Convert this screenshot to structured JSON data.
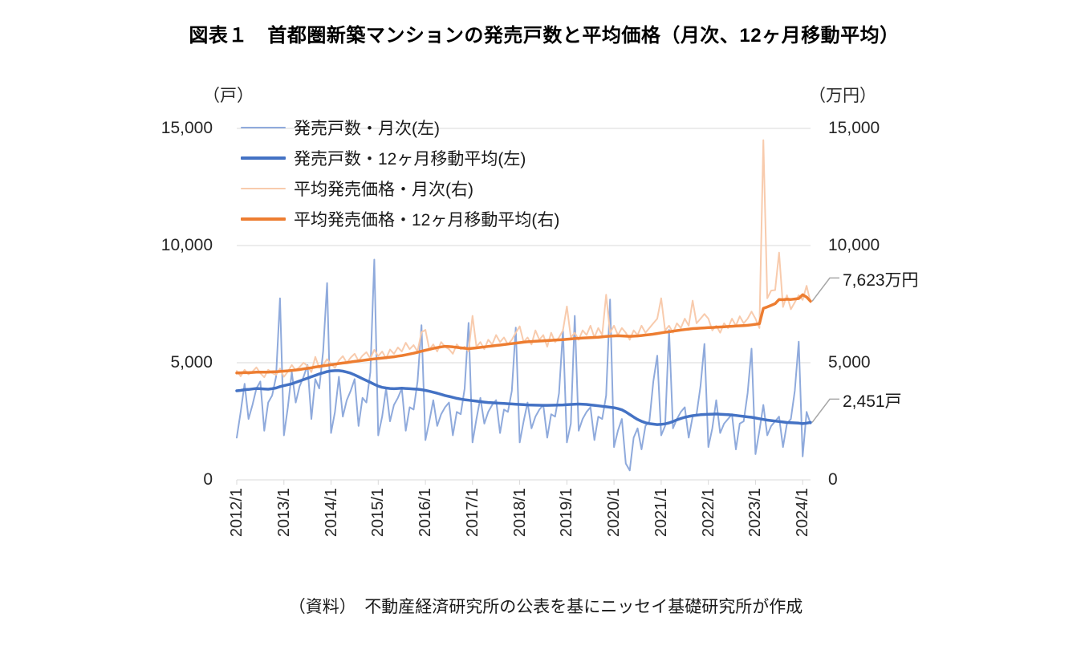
{
  "title": "図表１　首都圏新築マンションの発売戸数と平均価格（月次、12ヶ月移動平均）",
  "source": "（資料）　不動産経済研究所の公表を基にニッセイ基礎研究所が作成",
  "axes": {
    "left_unit": "（戸）",
    "right_unit": "（万円）",
    "tick_values": [
      15000,
      10000,
      5000,
      0
    ],
    "left_ticks": [
      "15,000",
      "10,000",
      "5,000",
      "0"
    ],
    "right_ticks": [
      "15,000",
      "10,000",
      "5,000",
      "0"
    ],
    "x_ticks": [
      "2012/1",
      "2013/1",
      "2014/1",
      "2015/1",
      "2016/1",
      "2017/1",
      "2018/1",
      "2019/1",
      "2020/1",
      "2021/1",
      "2022/1",
      "2023/1",
      "2024/1"
    ]
  },
  "colors": {
    "gridline": "#d9d9d9",
    "leader": "#a6a6a6",
    "units_monthly": "#8FAADC",
    "units_ma": "#4472C4",
    "price_monthly": "#F8CBAD",
    "price_ma": "#ED7D31"
  },
  "annotations": [
    {
      "text": "7,623万円",
      "value": 7623,
      "axis": "right",
      "series": "平均発売価格・12ヶ月移動平均(右)"
    },
    {
      "text": "2,451戸",
      "value": 2451,
      "axis": "left",
      "series": "発売戸数・12ヶ月移動平均(左)"
    }
  ],
  "chart_data": {
    "type": "line",
    "title": "図表１　首都圏新築マンションの発売戸数と平均価格（月次、12ヶ月移動平均）",
    "xlabel": "",
    "ylabel_left": "戸",
    "ylabel_right": "万円",
    "ylim_left": [
      0,
      15000
    ],
    "ylim_right": [
      0,
      15000
    ],
    "grid_values": [
      0,
      5000,
      10000,
      15000
    ],
    "x_start": "2012/1",
    "x_end": "2024/3",
    "frequency": "monthly",
    "legend_position": "top-left-inside",
    "series": [
      {
        "name": "発売戸数・月次(左)",
        "axis": "left",
        "color": "#8FAADC",
        "width": 2,
        "values": [
          1800,
          2900,
          4100,
          2600,
          3200,
          3900,
          4200,
          2100,
          3300,
          3600,
          4400,
          7750,
          1900,
          3100,
          4600,
          3300,
          4000,
          4400,
          4900,
          2600,
          4300,
          3900,
          5500,
          8400,
          2000,
          2900,
          4400,
          2700,
          3400,
          3800,
          4300,
          2300,
          3500,
          3300,
          4600,
          9400,
          1900,
          2700,
          3900,
          2500,
          3200,
          3500,
          3900,
          2100,
          3100,
          3000,
          4200,
          6600,
          1700,
          2500,
          3400,
          2300,
          2800,
          3100,
          3300,
          1900,
          2900,
          2800,
          3900,
          6700,
          1600,
          2600,
          3500,
          2400,
          2900,
          3200,
          3400,
          2000,
          3000,
          2900,
          3800,
          6500,
          1600,
          2500,
          3300,
          2200,
          2700,
          3000,
          3200,
          1800,
          2800,
          2700,
          3700,
          6400,
          1600,
          2400,
          7000,
          2100,
          2600,
          2900,
          3100,
          1700,
          2700,
          2600,
          3600,
          7700,
          1400,
          2100,
          2600,
          700,
          400,
          1800,
          2200,
          1300,
          2300,
          2500,
          4200,
          5300,
          1900,
          2300,
          6400,
          2200,
          2600,
          2900,
          3100,
          1800,
          2700,
          2800,
          4000,
          5800,
          1400,
          2200,
          3400,
          2000,
          2400,
          2600,
          2800,
          1300,
          2400,
          2500,
          3700,
          5600,
          1100,
          2100,
          3200,
          1900,
          2300,
          2500,
          2700,
          1400,
          2400,
          2600,
          3800,
          5900,
          1000,
          2900,
          2400
        ]
      },
      {
        "name": "発売戸数・12ヶ月移動平均(左)",
        "axis": "left",
        "color": "#4472C4",
        "width": 3.5,
        "values": [
          3800,
          3820,
          3850,
          3860,
          3880,
          3900,
          3890,
          3880,
          3870,
          3890,
          3920,
          3980,
          4020,
          4060,
          4100,
          4160,
          4220,
          4280,
          4340,
          4400,
          4460,
          4520,
          4570,
          4620,
          4650,
          4660,
          4660,
          4640,
          4600,
          4550,
          4480,
          4400,
          4320,
          4240,
          4160,
          4080,
          4000,
          3950,
          3920,
          3900,
          3890,
          3900,
          3910,
          3900,
          3890,
          3880,
          3870,
          3850,
          3820,
          3780,
          3740,
          3700,
          3650,
          3600,
          3560,
          3520,
          3480,
          3450,
          3420,
          3400,
          3380,
          3360,
          3340,
          3320,
          3300,
          3290,
          3280,
          3270,
          3260,
          3250,
          3240,
          3230,
          3220,
          3210,
          3200,
          3195,
          3190,
          3185,
          3180,
          3180,
          3185,
          3190,
          3195,
          3200,
          3210,
          3220,
          3230,
          3235,
          3230,
          3220,
          3200,
          3180,
          3160,
          3140,
          3120,
          3100,
          3080,
          3040,
          2990,
          2900,
          2790,
          2680,
          2580,
          2500,
          2440,
          2400,
          2380,
          2360,
          2370,
          2390,
          2430,
          2490,
          2560,
          2620,
          2670,
          2710,
          2740,
          2760,
          2780,
          2790,
          2800,
          2805,
          2810,
          2800,
          2790,
          2780,
          2770,
          2750,
          2730,
          2710,
          2690,
          2670,
          2640,
          2610,
          2580,
          2550,
          2530,
          2510,
          2490,
          2470,
          2450,
          2440,
          2430,
          2420,
          2400,
          2420,
          2451
        ]
      },
      {
        "name": "平均発売価格・月次(右)",
        "axis": "right",
        "color": "#F8CBAD",
        "width": 2,
        "values": [
          4650,
          4420,
          4700,
          4500,
          4620,
          4800,
          4550,
          4380,
          4700,
          4560,
          4480,
          4750,
          4400,
          4620,
          4900,
          4680,
          4820,
          5000,
          4860,
          4600,
          5250,
          4780,
          4900,
          5150,
          4950,
          4780,
          5100,
          5280,
          5000,
          5220,
          5380,
          5080,
          5300,
          5450,
          5180,
          5550,
          5280,
          5480,
          5180,
          5560,
          5380,
          5650,
          5480,
          5850,
          5580,
          5750,
          5480,
          6300,
          6400,
          5560,
          5780,
          5480,
          5880,
          5680,
          5580,
          5380,
          5780,
          5580,
          5680,
          5480,
          7000,
          5680,
          5880,
          5580,
          5980,
          5780,
          6180,
          5880,
          6080,
          5780,
          5980,
          6280,
          6550,
          5880,
          6080,
          5780,
          6380,
          5980,
          6180,
          5680,
          6280,
          5880,
          6080,
          6380,
          7400,
          6080,
          6280,
          5980,
          6380,
          6180,
          6580,
          6080,
          6480,
          6180,
          7900,
          6280,
          6580,
          6180,
          6480,
          6280,
          5980,
          6380,
          6180,
          6580,
          6280,
          6480,
          6680,
          6880,
          7750,
          6380,
          6580,
          6280,
          6680,
          6480,
          6880,
          6580,
          7650,
          6680,
          6880,
          7080,
          6880,
          6380,
          6580,
          6280,
          6680,
          6480,
          6880,
          6580,
          6980,
          6680,
          6880,
          7180,
          6880,
          6480,
          14500,
          7750,
          8080,
          8100,
          9700,
          7380,
          7880,
          7280,
          7580,
          7880,
          7680,
          8280,
          7580
        ]
      },
      {
        "name": "平均発売価格・12ヶ月移動平均(右)",
        "axis": "right",
        "color": "#ED7D31",
        "width": 3.5,
        "values": [
          4560,
          4570,
          4580,
          4575,
          4585,
          4595,
          4600,
          4595,
          4600,
          4610,
          4615,
          4625,
          4640,
          4655,
          4670,
          4690,
          4710,
          4735,
          4760,
          4785,
          4815,
          4840,
          4865,
          4890,
          4915,
          4940,
          4965,
          4985,
          5005,
          5030,
          5055,
          5075,
          5095,
          5120,
          5140,
          5165,
          5180,
          5200,
          5215,
          5235,
          5255,
          5280,
          5305,
          5335,
          5370,
          5405,
          5445,
          5490,
          5530,
          5570,
          5610,
          5645,
          5675,
          5700,
          5690,
          5675,
          5655,
          5635,
          5615,
          5600,
          5615,
          5635,
          5655,
          5675,
          5695,
          5715,
          5735,
          5755,
          5775,
          5795,
          5815,
          5835,
          5855,
          5875,
          5895,
          5905,
          5915,
          5925,
          5935,
          5945,
          5955,
          5965,
          5975,
          5985,
          6000,
          6015,
          6030,
          6040,
          6050,
          6060,
          6070,
          6080,
          6090,
          6105,
          6120,
          6135,
          6145,
          6150,
          6145,
          6135,
          6125,
          6135,
          6145,
          6160,
          6180,
          6200,
          6220,
          6245,
          6275,
          6300,
          6320,
          6345,
          6370,
          6395,
          6415,
          6435,
          6455,
          6465,
          6475,
          6485,
          6495,
          6505,
          6515,
          6525,
          6535,
          6545,
          6555,
          6565,
          6575,
          6585,
          6595,
          6615,
          6640,
          6665,
          7320,
          7380,
          7450,
          7520,
          7700,
          7690,
          7710,
          7700,
          7720,
          7740,
          7900,
          7800,
          7623
        ]
      }
    ]
  }
}
